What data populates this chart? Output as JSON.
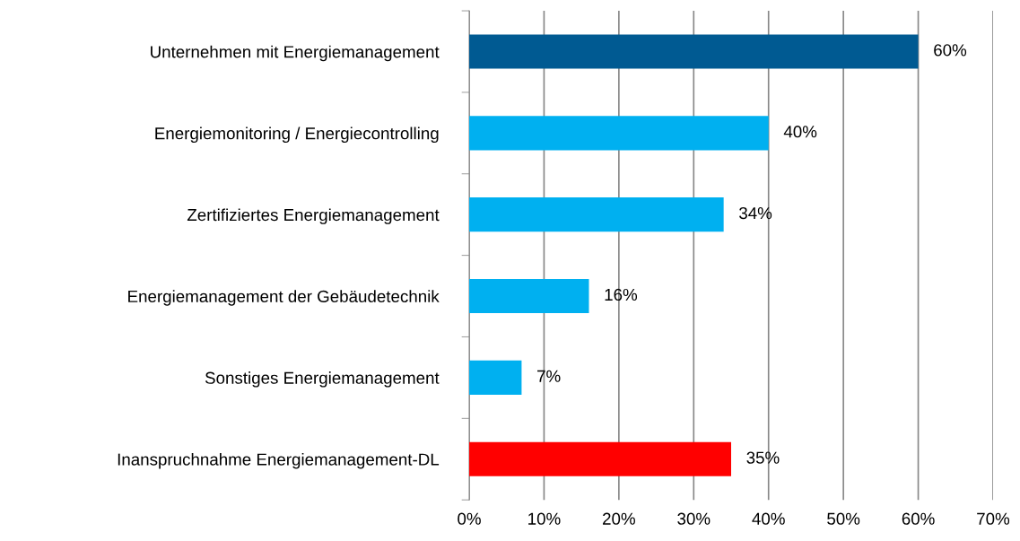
{
  "chart_data": {
    "type": "bar",
    "orientation": "horizontal",
    "categories": [
      "Unternehmen mit Energiemanagement",
      "Energiemonitoring / Energiecontrolling",
      "Zertifiziertes Energiemanagement",
      "Energiemanagement der Gebäudetechnik",
      "Sonstiges Energiemanagement",
      "Inanspruchnahme Energiemanagement-DL"
    ],
    "values": [
      60,
      40,
      34,
      16,
      7,
      35
    ],
    "colors": [
      "#005a92",
      "#00b0f0",
      "#00b0f0",
      "#00b0f0",
      "#00b0f0",
      "#ff0000"
    ],
    "value_labels": [
      "60%",
      "40%",
      "34%",
      "16%",
      "7%",
      "35%"
    ],
    "xlim": [
      0,
      70
    ],
    "xticks": [
      {
        "value": 0,
        "label": "0%"
      },
      {
        "value": 10,
        "label": "10%"
      },
      {
        "value": 20,
        "label": "20%"
      },
      {
        "value": 30,
        "label": "30%"
      },
      {
        "value": 40,
        "label": "40%"
      },
      {
        "value": 50,
        "label": "50%"
      },
      {
        "value": 60,
        "label": "60%"
      },
      {
        "value": 70,
        "label": "70%"
      }
    ],
    "grid": "x",
    "legend": false
  }
}
